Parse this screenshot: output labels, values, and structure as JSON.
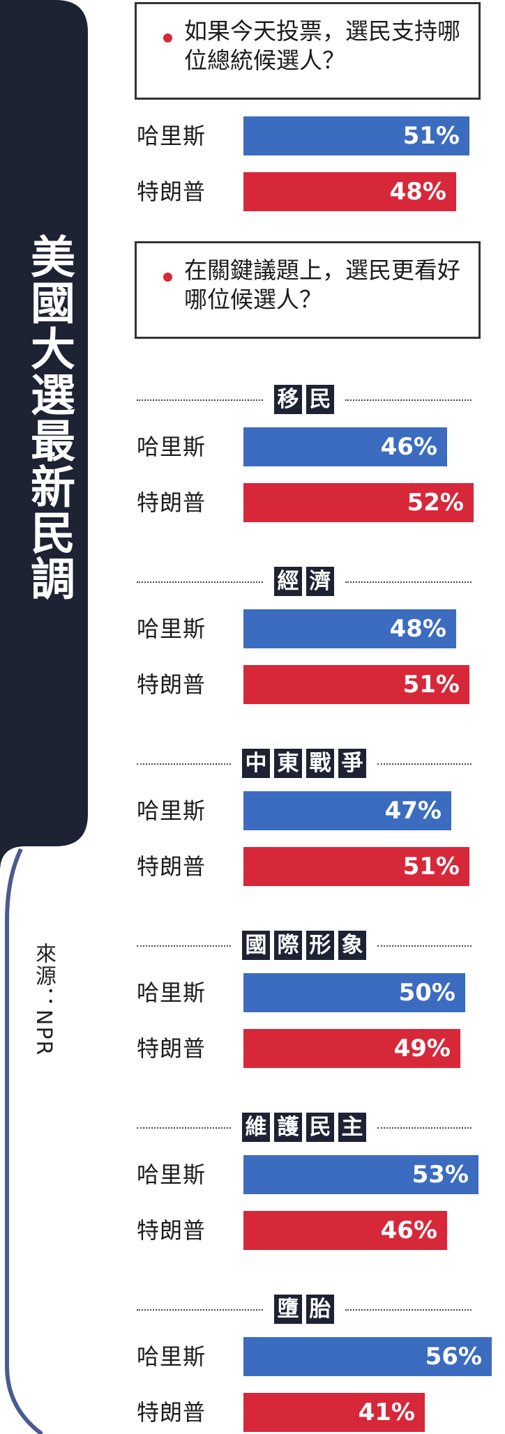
{
  "sidebar": {
    "title": "美國大選最新民調",
    "source": "來源：NPR",
    "bg_color": "#1d2333",
    "line_color": "#4a5b8e"
  },
  "colors": {
    "harris": "#3b6cc0",
    "trump": "#d7283a",
    "bullet": "#d7283a"
  },
  "questions": [
    {
      "text": "如果今天投票，選民支持哪位總統候選人？"
    },
    {
      "text": "在關鍵議題上，選民更看好哪位候選人？"
    }
  ],
  "chart_data": {
    "type": "bar",
    "orientation": "horizontal",
    "xlim": [
      0,
      60
    ],
    "unit": "%",
    "overall": {
      "series": [
        {
          "name": "哈里斯",
          "value": 51,
          "label": "51%"
        },
        {
          "name": "特朗普",
          "value": 48,
          "label": "48%"
        }
      ]
    },
    "issues": [
      {
        "topic": "移民",
        "series": [
          {
            "name": "哈里斯",
            "value": 46,
            "label": "46%"
          },
          {
            "name": "特朗普",
            "value": 52,
            "label": "52%"
          }
        ]
      },
      {
        "topic": "經濟",
        "series": [
          {
            "name": "哈里斯",
            "value": 48,
            "label": "48%"
          },
          {
            "name": "特朗普",
            "value": 51,
            "label": "51%"
          }
        ]
      },
      {
        "topic": "中東戰爭",
        "series": [
          {
            "name": "哈里斯",
            "value": 47,
            "label": "47%"
          },
          {
            "name": "特朗普",
            "value": 51,
            "label": "51%"
          }
        ]
      },
      {
        "topic": "國際形象",
        "series": [
          {
            "name": "哈里斯",
            "value": 50,
            "label": "50%"
          },
          {
            "name": "特朗普",
            "value": 49,
            "label": "49%"
          }
        ]
      },
      {
        "topic": "維護民主",
        "series": [
          {
            "name": "哈里斯",
            "value": 53,
            "label": "53%"
          },
          {
            "name": "特朗普",
            "value": 46,
            "label": "46%"
          }
        ]
      },
      {
        "topic": "墮胎",
        "series": [
          {
            "name": "哈里斯",
            "value": 56,
            "label": "56%"
          },
          {
            "name": "特朗普",
            "value": 41,
            "label": "41%"
          }
        ]
      }
    ]
  }
}
